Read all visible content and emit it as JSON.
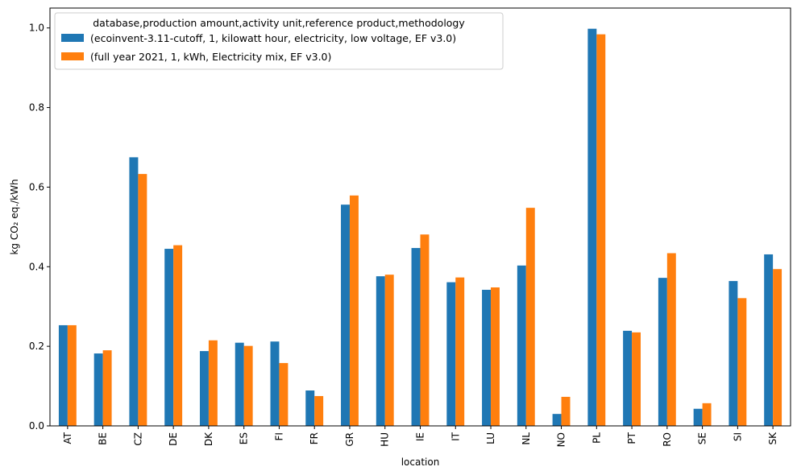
{
  "chart_data": {
    "type": "bar",
    "xlabel": "location",
    "ylabel": "kg CO₂ eq./kWh",
    "ylim": [
      0,
      1.05
    ],
    "yticks": [
      "0.0",
      "0.2",
      "0.4",
      "0.6",
      "0.8",
      "1.0"
    ],
    "grid": false,
    "legend_placement": "top-left",
    "legend_title": "database,production amount,activity unit,reference product,methodology",
    "categories": [
      "AT",
      "BE",
      "CZ",
      "DE",
      "DK",
      "ES",
      "FI",
      "FR",
      "GR",
      "HU",
      "IE",
      "IT",
      "LU",
      "NL",
      "NO",
      "PL",
      "PT",
      "RO",
      "SE",
      "SI",
      "SK"
    ],
    "series": [
      {
        "name": "(ecoinvent-3.11-cutoff, 1, kilowatt hour, electricity, low voltage, EF v3.0)",
        "color": "#1f77b4",
        "values": [
          0.253,
          0.182,
          0.675,
          0.445,
          0.188,
          0.209,
          0.212,
          0.089,
          0.556,
          0.376,
          0.447,
          0.361,
          0.342,
          0.403,
          0.03,
          0.998,
          0.239,
          0.372,
          0.043,
          0.364,
          0.431
        ]
      },
      {
        "name": "(full year 2021, 1, kWh, Electricity mix, EF v3.0)",
        "color": "#ff7f0e",
        "values": [
          0.253,
          0.19,
          0.633,
          0.454,
          0.215,
          0.201,
          0.158,
          0.075,
          0.579,
          0.38,
          0.481,
          0.373,
          0.348,
          0.548,
          0.073,
          0.984,
          0.235,
          0.434,
          0.057,
          0.321,
          0.394
        ]
      }
    ]
  }
}
